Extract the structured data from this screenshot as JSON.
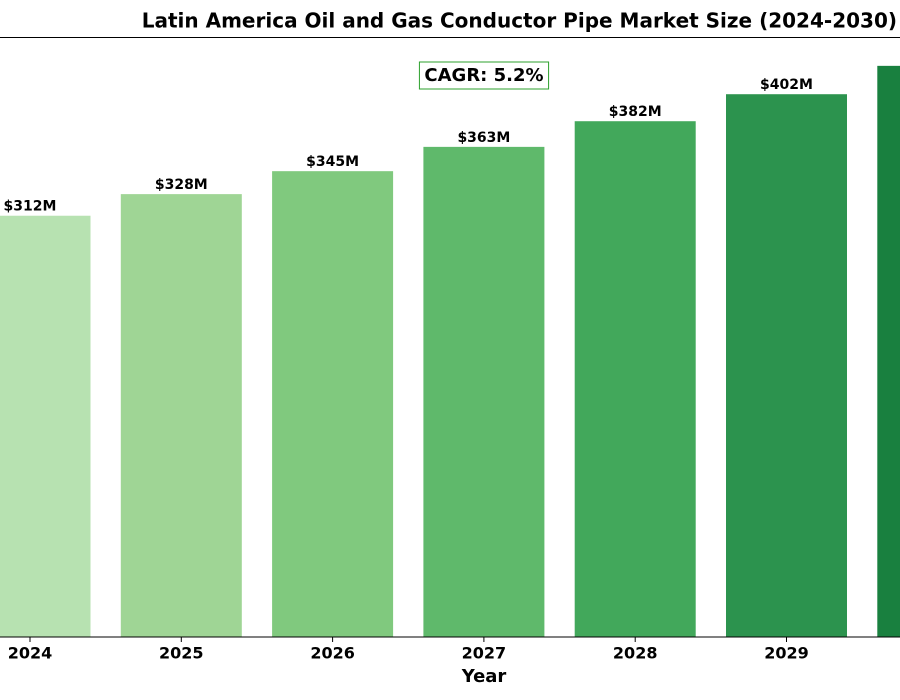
{
  "chart_data": {
    "type": "bar",
    "title": "Latin America Oil and Gas Conductor Pipe Market Size (2024-2030)",
    "x_label": "Year",
    "annotation": "CAGR: 5.2%",
    "categories": [
      "2024",
      "2025",
      "2026",
      "2027",
      "2028",
      "2029",
      null
    ],
    "values": [
      312,
      328,
      345,
      363,
      382,
      402,
      423
    ],
    "value_labels": [
      "$312M",
      "$328M",
      "$345M",
      "$363M",
      "$382M",
      "$402M",
      null
    ],
    "colors": [
      "#b7e2b1",
      "#9fd595",
      "#80c97e",
      "#5fb96b",
      "#42a85b",
      "#2c934e",
      "#19803f"
    ],
    "annotation_color": "#2ca02c",
    "ylim": [
      0,
      444
    ]
  }
}
